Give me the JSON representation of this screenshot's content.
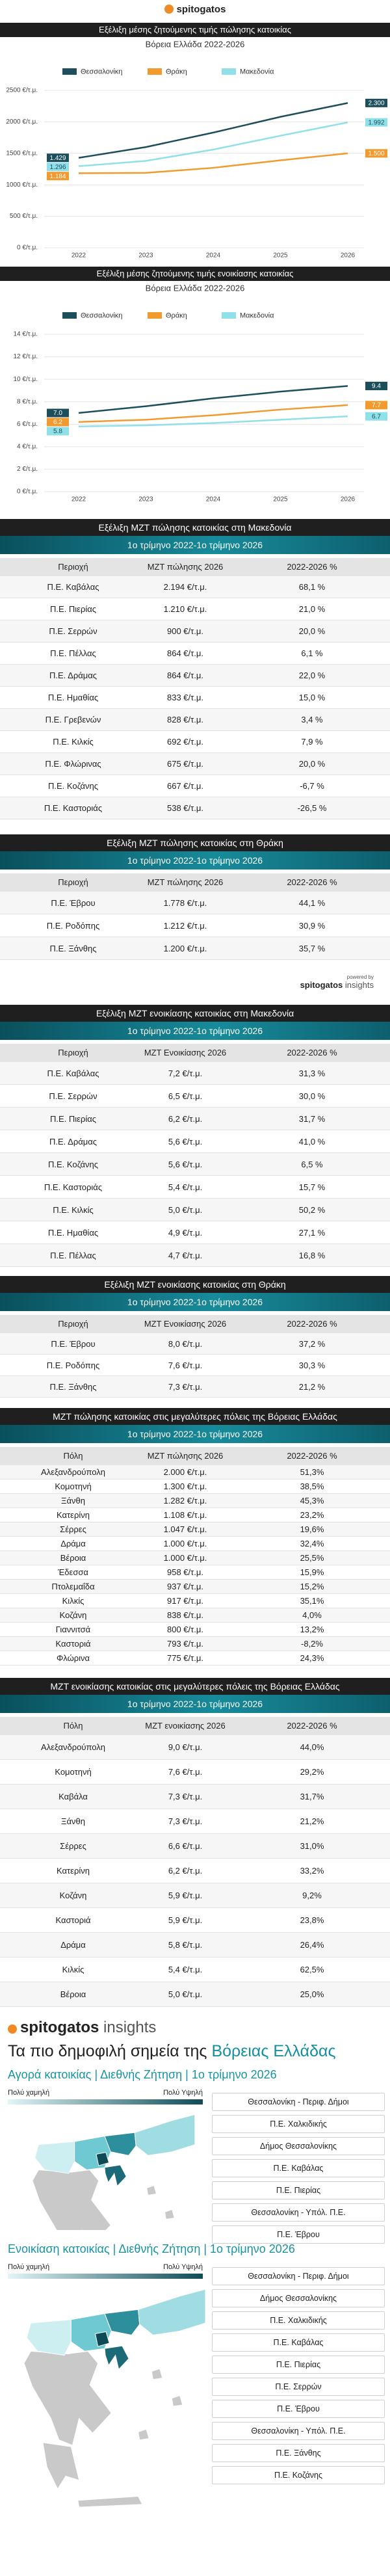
{
  "header": {
    "brand": "spitogatos"
  },
  "chart_data": [
    {
      "type": "line",
      "title": "Εξέλιξη μέσης ζητούμενης τιμής πώλησης κατοικίας",
      "subtitle": "Βόρεια Ελλάδα 2022-2026",
      "categories": [
        "2022",
        "2023",
        "2024",
        "2025",
        "2026"
      ],
      "ylim": [
        0,
        2500
      ],
      "yticks": [
        {
          "value": 0,
          "label": "0 €/τ.μ."
        },
        {
          "value": 500,
          "label": "500 €/τ.μ."
        },
        {
          "value": 1000,
          "label": "1000 €/τ.μ."
        },
        {
          "value": 1500,
          "label": "1500 €/τ.μ."
        },
        {
          "value": 2000,
          "label": "2000 €/τ.μ."
        },
        {
          "value": 2500,
          "label": "2500 €/τ.μ."
        }
      ],
      "grid": true,
      "series": [
        {
          "name": "Θεσσαλονίκη",
          "color": "#1d4e5c",
          "values": [
            1429,
            1600,
            1830,
            2080,
            2300
          ],
          "value_labels": [
            "1.429",
            null,
            null,
            null,
            "2.300"
          ]
        },
        {
          "name": "Θράκη",
          "color": "#f29a2e",
          "values": [
            1184,
            1190,
            1270,
            1390,
            1500
          ],
          "value_labels": [
            "1.184",
            null,
            null,
            null,
            "1.500"
          ]
        },
        {
          "name": "Μακεδονία",
          "color": "#8fe0e8",
          "values": [
            1296,
            1380,
            1560,
            1780,
            1992
          ],
          "value_labels": [
            "1.296",
            null,
            null,
            null,
            "1.992"
          ]
        }
      ]
    },
    {
      "type": "line",
      "title": "Εξέλιξη μέσης ζητούμενης τιμής ενοικίασης κατοικίας",
      "subtitle": "Βόρεια Ελλάδα 2022-2026",
      "categories": [
        "2022",
        "2023",
        "2024",
        "2025",
        "2026"
      ],
      "ylim": [
        0,
        14
      ],
      "yticks": [
        {
          "value": 0,
          "label": "0 €/τ.μ."
        },
        {
          "value": 2,
          "label": "2 €/τ.μ."
        },
        {
          "value": 4,
          "label": "4 €/τ.μ."
        },
        {
          "value": 6,
          "label": "6 €/τ.μ."
        },
        {
          "value": 8,
          "label": "8 €/τ.μ."
        },
        {
          "value": 10,
          "label": "10 €/τ.μ."
        },
        {
          "value": 12,
          "label": "12 €/τ.μ."
        },
        {
          "value": 14,
          "label": "14 €/τ.μ."
        }
      ],
      "grid": true,
      "series": [
        {
          "name": "Θεσσαλονίκη",
          "color": "#1d4e5c",
          "values": [
            7.0,
            7.6,
            8.3,
            8.9,
            9.4
          ],
          "value_labels": [
            "7.0",
            null,
            null,
            null,
            "9.4"
          ]
        },
        {
          "name": "Θράκη",
          "color": "#f29a2e",
          "values": [
            6.2,
            6.4,
            6.8,
            7.3,
            7.7
          ],
          "value_labels": [
            "6.2",
            null,
            null,
            null,
            "7.7"
          ]
        },
        {
          "name": "Μακεδονία",
          "color": "#8fe0e8",
          "values": [
            5.8,
            5.9,
            6.1,
            6.4,
            6.7
          ],
          "value_labels": [
            "5.8",
            null,
            null,
            null,
            "6.7"
          ]
        }
      ]
    }
  ],
  "tables": [
    {
      "title": "Εξέλιξη ΜΖΤ πώλησης κατοικίας στη Μακεδονία",
      "subtitle": "1ο τρίμηνο 2022-1ο τρίμηνο 2026",
      "header": [
        "Περιοχή",
        "ΜΖΤ πώλησης 2026",
        "2022-2026 %"
      ],
      "rows": [
        [
          "Π.Ε. Καβάλας",
          "2.194 €/τ.μ.",
          "68,1 %"
        ],
        [
          "Π.Ε. Πιερίας",
          "1.210 €/τ.μ.",
          "21,0 %"
        ],
        [
          "Π.Ε. Σερρών",
          "900 €/τ.μ.",
          "20,0 %"
        ],
        [
          "Π.Ε. Πέλλας",
          "864 €/τ.μ.",
          "6,1 %"
        ],
        [
          "Π.Ε. Δράμας",
          "864 €/τ.μ.",
          "22,0 %"
        ],
        [
          "Π.Ε. Ημαθίας",
          "833 €/τ.μ.",
          "15,0 %"
        ],
        [
          "Π.Ε. Γρεβενών",
          "828 €/τ.μ.",
          "3,4 %"
        ],
        [
          "Π.Ε. Κιλκίς",
          "692 €/τ.μ.",
          "7,9 %"
        ],
        [
          "Π.Ε. Φλώρινας",
          "675 €/τ.μ.",
          "20,0 %"
        ],
        [
          "Π.Ε. Κοζάνης",
          "667 €/τ.μ.",
          "-6,7 %"
        ],
        [
          "Π.Ε. Καστοριάς",
          "538 €/τ.μ.",
          "-26,5 %"
        ]
      ]
    },
    {
      "title": "Εξέλιξη ΜΖΤ πώλησης κατοικίας στη Θράκη",
      "subtitle": "1ο τρίμηνο 2022-1ο τρίμηνο 2026",
      "header": [
        "Περιοχή",
        "ΜΖΤ πώλησης 2026",
        "2022-2026 %"
      ],
      "rows": [
        [
          "Π.Ε. Έβρου",
          "1.778 €/τ.μ.",
          "44,1 %"
        ],
        [
          "Π.Ε. Ροδόπης",
          "1.212 €/τ.μ.",
          "30,9 %"
        ],
        [
          "Π.Ε. Ξάνθης",
          "1.200 €/τ.μ.",
          "35,7 %"
        ]
      ]
    },
    {
      "title": "Εξέλιξη ΜΖΤ ενοικίασης κατοικίας στη Μακεδονία",
      "subtitle": "1ο τρίμηνο 2022-1ο τρίμηνο 2026",
      "header": [
        "Περιοχή",
        "ΜΖΤ Ενοικίασης 2026",
        "2022-2026 %"
      ],
      "rows": [
        [
          "Π.Ε. Καβάλας",
          "7,2 €/τ.μ.",
          "31,3 %"
        ],
        [
          "Π.Ε. Σερρών",
          "6,5 €/τ.μ.",
          "30,0 %"
        ],
        [
          "Π.Ε. Πιερίας",
          "6,2 €/τ.μ.",
          "31,7 %"
        ],
        [
          "Π.Ε. Δράμας",
          "5,6 €/τ.μ.",
          "41,0 %"
        ],
        [
          "Π.Ε. Κοζάνης",
          "5,6 €/τ.μ.",
          "6,5 %"
        ],
        [
          "Π.Ε. Καστοριάς",
          "5,4 €/τ.μ.",
          "15,7 %"
        ],
        [
          "Π.Ε. Κιλκίς",
          "5,0 €/τ.μ.",
          "50,2 %"
        ],
        [
          "Π.Ε. Ημαθίας",
          "4,9 €/τ.μ.",
          "27,1 %"
        ],
        [
          "Π.Ε. Πέλλας",
          "4,7 €/τ.μ.",
          "16,8 %"
        ]
      ]
    },
    {
      "title": "Εξέλιξη ΜΖΤ ενοικίασης κατοικίας στη Θράκη",
      "subtitle": "1ο τρίμηνο 2022-1ο τρίμηνο 2026",
      "header": [
        "Περιοχή",
        "ΜΖΤ Ενοικίασης 2026",
        "2022-2026 %"
      ],
      "rows": [
        [
          "Π.Ε. Έβρου",
          "8,0 €/τ.μ.",
          "37,2 %"
        ],
        [
          "Π.Ε. Ροδόπης",
          "7,6 €/τ.μ.",
          "30,3 %"
        ],
        [
          "Π.Ε. Ξάνθης",
          "7,3 €/τ.μ.",
          "21,2 %"
        ]
      ]
    },
    {
      "title": "ΜΖΤ πώλησης κατοικίας στις μεγαλύτερες πόλεις της Βόρειας Ελλάδας",
      "subtitle": "1ο τρίμηνο 2022-1ο τρίμηνο 2026",
      "header": [
        "Πόλη",
        "ΜΖΤ πώλησης 2026",
        "2022-2026 %"
      ],
      "rows": [
        [
          "Αλεξανδρούπολη",
          "2.000 €/τ.μ.",
          "51,3%"
        ],
        [
          "Κομοτηνή",
          "1.300 €/τ.μ.",
          "38,5%"
        ],
        [
          "Ξάνθη",
          "1.282 €/τ.μ.",
          "45,3%"
        ],
        [
          "Κατερίνη",
          "1.108 €/τ.μ.",
          "23,2%"
        ],
        [
          "Σέρρες",
          "1.047 €/τ.μ.",
          "19,6%"
        ],
        [
          "Δράμα",
          "1.000 €/τ.μ.",
          "32,4%"
        ],
        [
          "Βέροια",
          "1.000 €/τ.μ.",
          "25,5%"
        ],
        [
          "Έδεσσα",
          "958 €/τ.μ.",
          "15,9%"
        ],
        [
          "Πτολεμαΐδα",
          "937 €/τ.μ.",
          "15,2%"
        ],
        [
          "Κιλκίς",
          "917 €/τ.μ.",
          "35,1%"
        ],
        [
          "Κοζάνη",
          "838 €/τ.μ.",
          "4,0%"
        ],
        [
          "Γιαννιτσά",
          "800 €/τ.μ.",
          "13,2%"
        ],
        [
          "Καστοριά",
          "793 €/τ.μ.",
          "-8,2%"
        ],
        [
          "Φλώρινα",
          "775 €/τ.μ.",
          "24,3%"
        ]
      ]
    },
    {
      "title": "ΜΖΤ ενοικίασης κατοικίας στις μεγαλύτερες πόλεις της Βόρειας Ελλάδας",
      "subtitle": "1ο τρίμηνο 2022-1ο τρίμηνο 2026",
      "header": [
        "Πόλη",
        "ΜΖΤ ενοικίασης 2026",
        "2022-2026 %"
      ],
      "rows": [
        [
          "Αλεξανδρούπολη",
          "9,0 €/τ.μ.",
          "44,0%"
        ],
        [
          "Κομοτηνή",
          "7,6 €/τ.μ.",
          "29,2%"
        ],
        [
          "Καβάλα",
          "7,3 €/τ.μ.",
          "31,7%"
        ],
        [
          "Ξάνθη",
          "7,3 €/τ.μ.",
          "21,2%"
        ],
        [
          "Σέρρες",
          "6,6 €/τ.μ.",
          "31,0%"
        ],
        [
          "Κατερίνη",
          "6,2 €/τ.μ.",
          "33,2%"
        ],
        [
          "Κοζάνη",
          "5,9 €/τ.μ.",
          "9,2%"
        ],
        [
          "Καστοριά",
          "5,9 €/τ.μ.",
          "23,8%"
        ],
        [
          "Δράμα",
          "5,8 €/τ.μ.",
          "26,4%"
        ],
        [
          "Κιλκίς",
          "5,4 €/τ.μ.",
          "62,5%"
        ],
        [
          "Βέροια",
          "5,0 €/τ.μ.",
          "25,0%"
        ]
      ]
    }
  ],
  "powered_by": {
    "label": "powered by",
    "brand": "spitogatos",
    "suffix": "insights"
  },
  "insights": {
    "brand": "spitogatos",
    "suffix": "insights",
    "title_start": "Τα πιο δημοφιλή σημεία της",
    "title_highlight": "Βόρειας Ελλάδας",
    "maps": [
      {
        "subtitle": "Αγορά κατοικίας | Διεθνής Ζήτηση | 1ο τρίμηνο 2026",
        "legend_low": "Πολύ χαμηλή",
        "legend_high": "Πολύ Υψηλή",
        "areas": [
          "Θεσσαλονίκη - Περιφ. Δήμοι",
          "Π.Ε. Χαλκιδικής",
          "Δήμος Θεσσαλονίκης",
          "Π.Ε. Καβάλας",
          "Π.Ε. Πιερίας",
          "Θεσσαλονίκη - Υπόλ. Π.Ε.",
          "Π.Ε. Έβρου"
        ]
      },
      {
        "subtitle": "Ενοικίαση κατοικίας | Διεθνής Ζήτηση | 1ο τρίμηνο 2026",
        "legend_low": "Πολύ χαμηλή",
        "legend_high": "Πολύ Υψηλή",
        "areas": [
          "Θεσσαλονίκη - Περιφ. Δήμοι",
          "Δήμος Θεσσαλονίκης",
          "Π.Ε. Χαλκιδικής",
          "Π.Ε. Καβάλας",
          "Π.Ε. Πιερίας",
          "Π.Ε. Σερρών",
          "Π.Ε. Έβρου",
          "Θεσσαλονίκη - Υπόλ. Π.Ε.",
          "Π.Ε. Ξάνθης",
          "Π.Ε. Κοζάνης"
        ]
      }
    ]
  }
}
